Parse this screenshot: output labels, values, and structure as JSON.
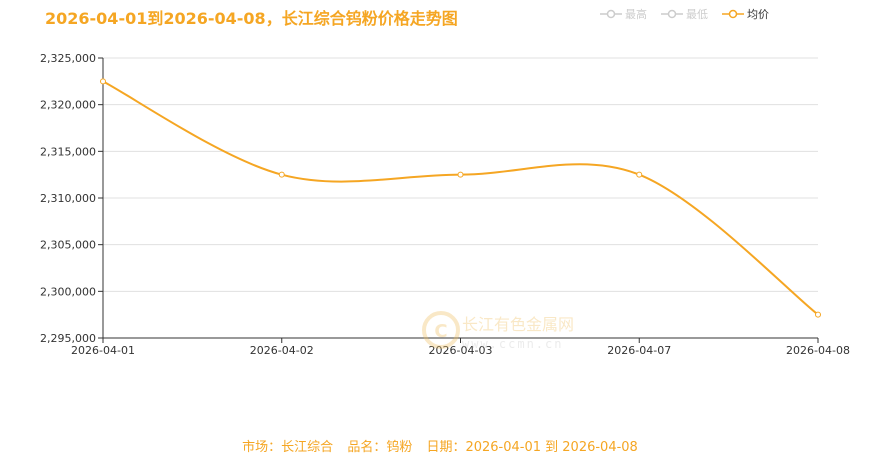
{
  "header": {
    "title": "2026-04-01到2026-04-08，长江综合钨粉价格走势图"
  },
  "legend": [
    {
      "label": "最高",
      "active": false,
      "color": "#cccccc"
    },
    {
      "label": "最低",
      "active": false,
      "color": "#cccccc"
    },
    {
      "label": "均价",
      "active": true,
      "color": "#f5a623"
    }
  ],
  "watermark": {
    "cn": "长江有色金属网",
    "en": "www.ccmn.cn"
  },
  "footer": {
    "market": "市场：长江综合",
    "product": "品名：钨粉",
    "date": "日期：2026-04-01 到 2026-04-08"
  },
  "chart_data": {
    "type": "line",
    "categories": [
      "2026-04-01",
      "2026-04-02",
      "2026-04-03",
      "2026-04-07",
      "2026-04-08"
    ],
    "series": [
      {
        "name": "均价",
        "values": [
          2322500,
          2312500,
          2312500,
          2312500,
          2297500
        ],
        "color": "#f5a623"
      }
    ],
    "ylim": [
      2295000,
      2325000
    ],
    "yticks": [
      2295000,
      2300000,
      2305000,
      2310000,
      2315000,
      2320000,
      2325000
    ],
    "ytick_labels": [
      "2,295,000",
      "2,300,000",
      "2,305,000",
      "2,310,000",
      "2,315,000",
      "2,320,000",
      "2,325,000"
    ],
    "grid": true,
    "smooth": true
  }
}
